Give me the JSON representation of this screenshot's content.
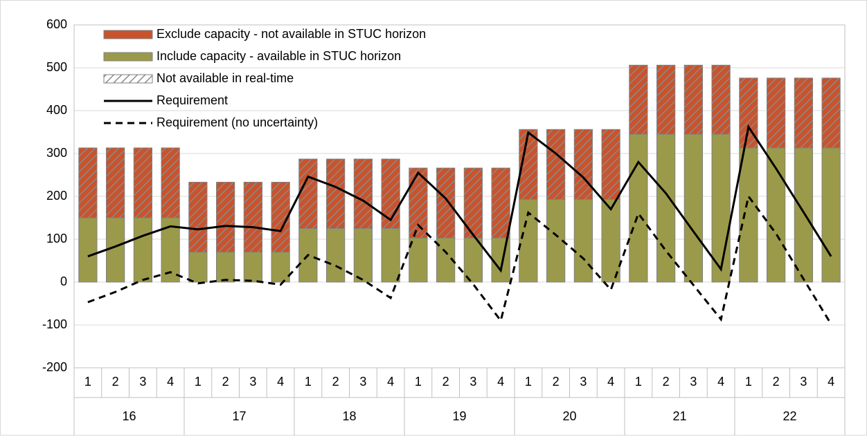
{
  "chart_data": {
    "type": "bar",
    "stacked": true,
    "categories": [
      "1",
      "2",
      "3",
      "4",
      "1",
      "2",
      "3",
      "4",
      "1",
      "2",
      "3",
      "4",
      "1",
      "2",
      "3",
      "4",
      "1",
      "2",
      "3",
      "4",
      "1",
      "2",
      "3",
      "4",
      "1",
      "2",
      "3",
      "4"
    ],
    "groups": [
      "16",
      "17",
      "18",
      "19",
      "20",
      "21",
      "22"
    ],
    "ylim": [
      -200,
      600
    ],
    "yticks": [
      -200,
      -100,
      0,
      100,
      200,
      300,
      400,
      500,
      600
    ],
    "grid": true,
    "legend": "upper left",
    "series": [
      {
        "name": "Exclude capacity - not available in STUC horizon",
        "type": "bar",
        "color": "#c9532c",
        "hatch": true,
        "values": [
          163,
          163,
          163,
          163,
          163,
          163,
          163,
          163,
          162,
          162,
          162,
          162,
          163,
          163,
          163,
          163,
          163,
          163,
          163,
          163,
          161,
          161,
          161,
          161,
          163,
          163,
          163,
          163
        ]
      },
      {
        "name": "Include capacity - available in STUC horizon",
        "type": "bar",
        "color": "#9b9a4a",
        "values": [
          150,
          150,
          150,
          150,
          70,
          70,
          70,
          70,
          125,
          125,
          125,
          125,
          103,
          103,
          103,
          103,
          193,
          193,
          193,
          193,
          345,
          345,
          345,
          345,
          313,
          313,
          313,
          313
        ]
      },
      {
        "name": "Not available in real-time",
        "type": "hatch-legend",
        "color": "#888888"
      },
      {
        "name": "Requirement",
        "type": "line",
        "color": "#000000",
        "dash": false,
        "values": [
          60,
          83,
          108,
          130,
          123,
          131,
          128,
          119,
          246,
          222,
          190,
          145,
          255,
          195,
          110,
          27,
          349,
          300,
          244,
          170,
          280,
          207,
          118,
          30,
          362,
          265,
          163,
          60
        ]
      },
      {
        "name": "Requirement (no uncertainty)",
        "type": "line",
        "color": "#000000",
        "dash": true,
        "values": [
          -47,
          -23,
          5,
          23,
          -3,
          5,
          3,
          -6,
          63,
          38,
          5,
          -37,
          133,
          70,
          -5,
          -90,
          162,
          110,
          55,
          -18,
          160,
          73,
          -7,
          -87,
          200,
          113,
          7,
          -98
        ]
      }
    ]
  }
}
